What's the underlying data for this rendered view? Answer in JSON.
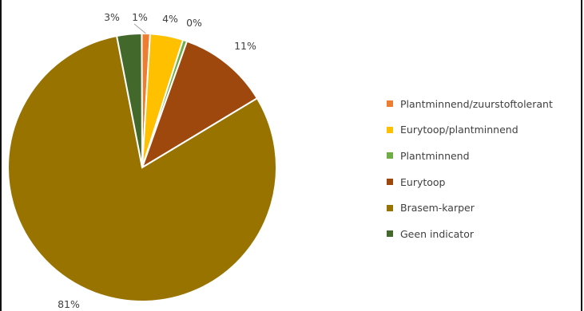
{
  "chart_data": {
    "type": "pie",
    "slices": [
      {
        "label": "Plantminnend/zuurstoftolerant",
        "value": 1,
        "data_label": "1%",
        "color": "#ED7D31"
      },
      {
        "label": "Eurytoop/plantminnend",
        "value": 4,
        "data_label": "4%",
        "color": "#FFC000"
      },
      {
        "label": "Plantminnend",
        "value": 0.5,
        "data_label": "0%",
        "color": "#70AD47"
      },
      {
        "label": "Eurytoop",
        "value": 11,
        "data_label": "11%",
        "color": "#9E480E"
      },
      {
        "label": "Brasem-karper",
        "value": 81,
        "data_label": "81%",
        "color": "#997300"
      },
      {
        "label": "Geen indicator",
        "value": 3,
        "data_label": "3%",
        "color": "#43682B"
      }
    ],
    "legend_position": "right"
  }
}
